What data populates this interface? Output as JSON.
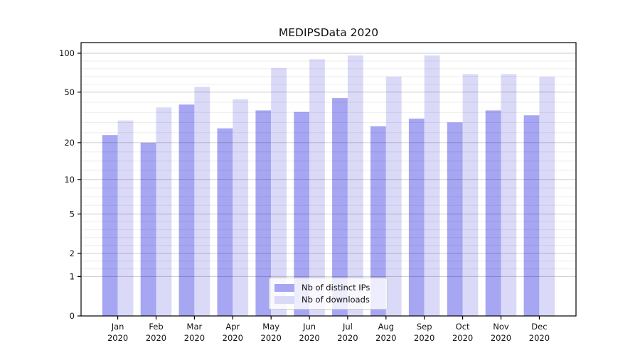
{
  "title": "MEDIPSData 2020",
  "chart_data": {
    "type": "bar",
    "title": "MEDIPSData 2020",
    "x_tick_month": [
      "Jan",
      "Feb",
      "Mar",
      "Apr",
      "May",
      "Jun",
      "Jul",
      "Aug",
      "Sep",
      "Oct",
      "Nov",
      "Dec"
    ],
    "x_tick_year": "2020",
    "x_categories": [
      "Jan 2020",
      "Feb 2020",
      "Mar 2020",
      "Apr 2020",
      "May 2020",
      "Jun 2020",
      "Jul 2020",
      "Aug 2020",
      "Sep 2020",
      "Oct 2020",
      "Nov 2020",
      "Dec 2020"
    ],
    "series": [
      {
        "name": "Nb of distinct IPs",
        "color": "#a6a6f3",
        "values": [
          23,
          20,
          40,
          26,
          36,
          35,
          45,
          27,
          31,
          29,
          36,
          33
        ]
      },
      {
        "name": "Nb of downloads",
        "color": "#dadaf8",
        "values": [
          30,
          38,
          55,
          44,
          77,
          90,
          96,
          66,
          96,
          69,
          69,
          66
        ]
      }
    ],
    "y_axis": {
      "scale": "log1p",
      "ticks": [
        0,
        1,
        2,
        5,
        10,
        20,
        50,
        100
      ],
      "top_value": 121
    },
    "grid": {
      "major_color": "rgba(0,0,0,0.20)",
      "minor_color": "rgba(0,0,0,0.07)",
      "minor_counts_per_gap": [
        0,
        2,
        4,
        3,
        3,
        4,
        4
      ]
    },
    "legend_position": "lower center",
    "spine_color": "#000000"
  }
}
